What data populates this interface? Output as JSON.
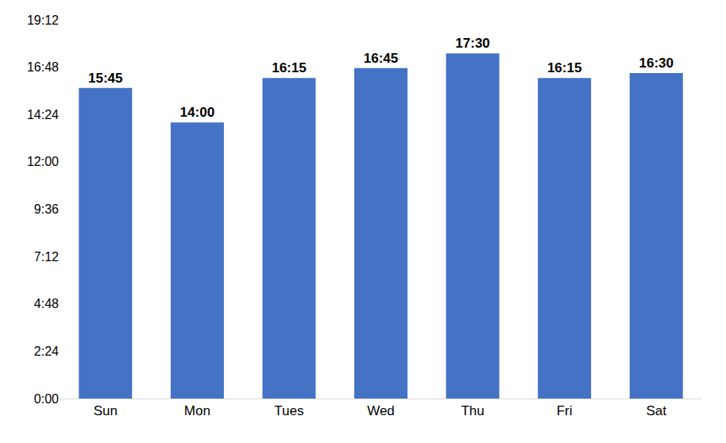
{
  "chart_data": {
    "type": "bar",
    "categories": [
      "Sun",
      "Mon",
      "Tues",
      "Wed",
      "Thu",
      "Fri",
      "Sat"
    ],
    "values": [
      15.75,
      14,
      16.25,
      16.75,
      17.5,
      16.25,
      16.5
    ],
    "value_labels": [
      "15:45",
      "14:00",
      "16:15",
      "16:45",
      "17:30",
      "16:15",
      "16:30"
    ],
    "color": "#4472c4",
    "ylim": [
      0,
      19.2
    ],
    "yticks": [
      {
        "value": 0,
        "label": "0:00"
      },
      {
        "value": 2.4,
        "label": "2:24"
      },
      {
        "value": 4.8,
        "label": "4:48"
      },
      {
        "value": 7.2,
        "label": "7:12"
      },
      {
        "value": 9.6,
        "label": "9:36"
      },
      {
        "value": 12,
        "label": "12:00"
      },
      {
        "value": 14.4,
        "label": "14:24"
      },
      {
        "value": 16.8,
        "label": "16:48"
      },
      {
        "value": 19.2,
        "label": "19:12"
      }
    ],
    "grid": false,
    "data_labels": true
  }
}
